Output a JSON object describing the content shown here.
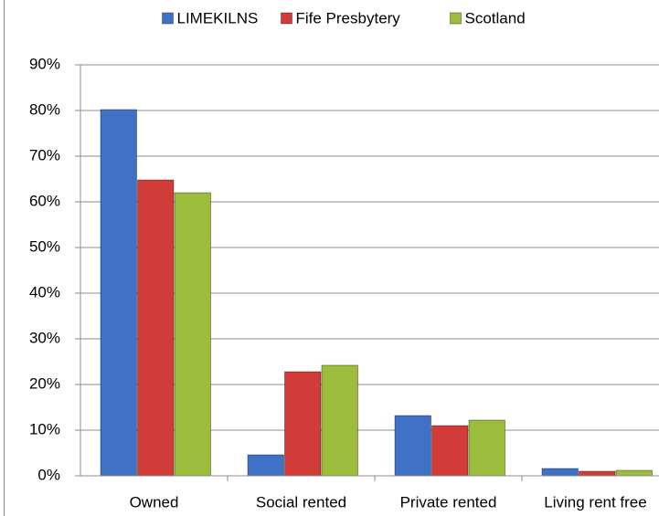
{
  "chart_data": {
    "type": "bar",
    "categories": [
      "Owned",
      "Social rented",
      "Private rented",
      "Living rent free"
    ],
    "series": [
      {
        "name": "LIMEKILNS",
        "color": "#3f72c6",
        "values": [
          80.2,
          4.6,
          13.2,
          1.6
        ]
      },
      {
        "name": "Fife Presbytery",
        "color": "#d13b38",
        "values": [
          64.8,
          22.8,
          11.0,
          1.0
        ]
      },
      {
        "name": "Scotland",
        "color": "#9cbc3c",
        "values": [
          62.0,
          24.2,
          12.2,
          1.2
        ]
      }
    ],
    "ylim": [
      0,
      90
    ],
    "yticks": [
      {
        "value": 0,
        "label": "0%"
      },
      {
        "value": 10,
        "label": "10%"
      },
      {
        "value": 20,
        "label": "20%"
      },
      {
        "value": 30,
        "label": "30%"
      },
      {
        "value": 40,
        "label": "40%"
      },
      {
        "value": 50,
        "label": "50%"
      },
      {
        "value": 60,
        "label": "60%"
      },
      {
        "value": 70,
        "label": "70%"
      },
      {
        "value": 80,
        "label": "80%"
      },
      {
        "value": 90,
        "label": "90%"
      }
    ],
    "grid": true,
    "legend": "top"
  }
}
